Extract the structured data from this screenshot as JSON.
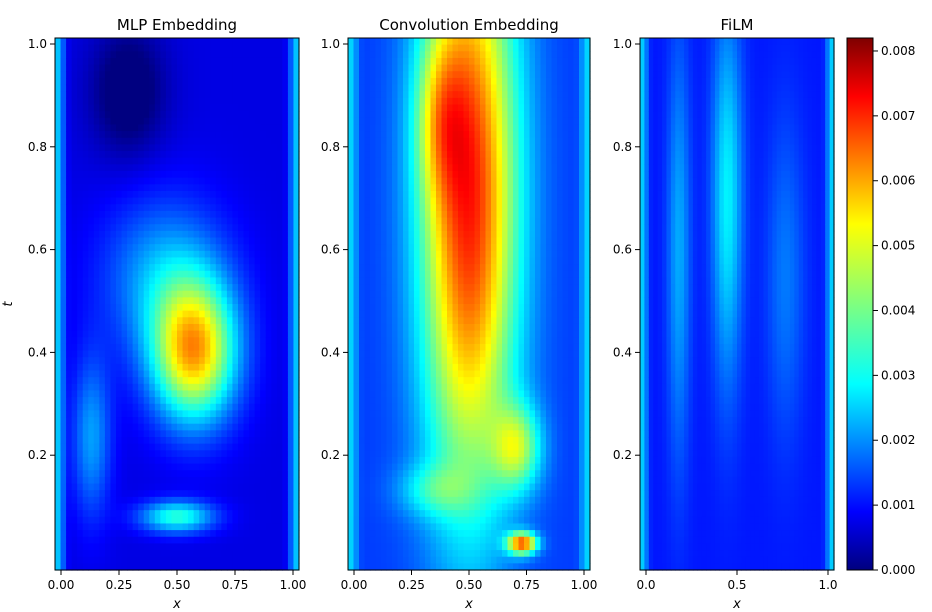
{
  "chart_data": [
    {
      "type": "heatmap",
      "title": "MLP Embedding",
      "xlabel": "x",
      "ylabel": "t",
      "xlim": [
        0.0,
        1.0
      ],
      "ylim": [
        0.0,
        1.0
      ],
      "xticks": [
        "0.00",
        "0.25",
        "0.50",
        "0.75",
        "1.00"
      ],
      "yticks": [
        "0.2",
        "0.4",
        "0.6",
        "0.8",
        "1.0"
      ],
      "colormap": "jet",
      "features": [
        {
          "x": 0.57,
          "t": 0.41,
          "value": 0.0048,
          "sx": 0.17,
          "sy": 0.13
        },
        {
          "x": 0.45,
          "t": 0.55,
          "value": 0.0016,
          "sx": 0.25,
          "sy": 0.15
        },
        {
          "x": 0.5,
          "t": 0.1,
          "value": 0.0026,
          "sx": 0.15,
          "sy": 0.03
        },
        {
          "x": 0.15,
          "t": 0.25,
          "value": 0.0015,
          "sx": 0.08,
          "sy": 0.15
        },
        {
          "x": 0.3,
          "t": 0.9,
          "value": -0.0012,
          "sx": 0.15,
          "sy": 0.12
        }
      ],
      "background": 0.0008
    },
    {
      "type": "heatmap",
      "title": "Convolution Embedding",
      "xlabel": "x",
      "ylabel": "",
      "xlim": [
        0.0,
        1.0
      ],
      "ylim": [
        0.0,
        1.0
      ],
      "xticks": [
        "0.00",
        "0.25",
        "0.50",
        "0.75",
        "1.00"
      ],
      "yticks": [
        "0.2",
        "0.4",
        "0.6",
        "0.8",
        "1.0"
      ],
      "colormap": "jet",
      "features": [
        {
          "x": 0.5,
          "t": 0.7,
          "value": 0.0055,
          "sx": 0.2,
          "sy": 0.55
        },
        {
          "x": 0.38,
          "t": 0.85,
          "value": 0.0015,
          "sx": 0.1,
          "sy": 0.15
        },
        {
          "x": 0.7,
          "t": 0.23,
          "value": 0.0025,
          "sx": 0.1,
          "sy": 0.08
        },
        {
          "x": 0.35,
          "t": 0.15,
          "value": 0.0012,
          "sx": 0.15,
          "sy": 0.05
        },
        {
          "x": 0.72,
          "t": 0.05,
          "value": 0.0048,
          "sx": 0.06,
          "sy": 0.02
        }
      ],
      "background": 0.0015
    },
    {
      "type": "heatmap",
      "title": "FiLM",
      "xlabel": "x",
      "ylabel": "",
      "xlim": [
        0.0,
        1.0
      ],
      "ylim": [
        0.0,
        1.0
      ],
      "xticks": [
        "0.0",
        "0.5",
        "1.0"
      ],
      "yticks": [
        "0.2",
        "0.4",
        "0.6",
        "0.8",
        "1.0"
      ],
      "colormap": "jet",
      "features": [
        {
          "x": 0.45,
          "t": 0.7,
          "value": 0.0018,
          "sx": 0.08,
          "sy": 0.35
        },
        {
          "x": 0.2,
          "t": 0.6,
          "value": 0.0012,
          "sx": 0.06,
          "sy": 0.4
        },
        {
          "x": 0.75,
          "t": 0.55,
          "value": 0.0008,
          "sx": 0.1,
          "sy": 0.3
        }
      ],
      "background": 0.0012
    }
  ],
  "colorbar": {
    "min": 0.0,
    "max": 0.0082,
    "ticks": [
      "0.000",
      "0.001",
      "0.002",
      "0.003",
      "0.004",
      "0.005",
      "0.006",
      "0.007",
      "0.008"
    ]
  }
}
